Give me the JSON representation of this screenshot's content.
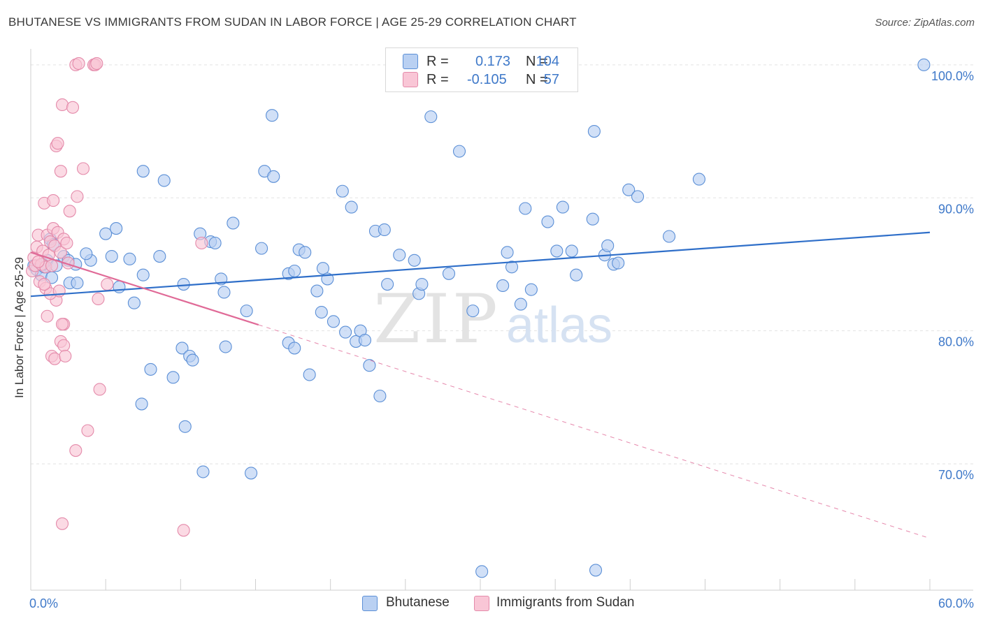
{
  "title": "BHUTANESE VS IMMIGRANTS FROM SUDAN IN LABOR FORCE | AGE 25-29 CORRELATION CHART",
  "source": "Source: ZipAtlas.com",
  "watermark": {
    "zip": "ZIP",
    "atlas": "atlas"
  },
  "legend": {
    "series": [
      {
        "r_label": "R =",
        "r_value": "0.173",
        "n_label": "N =",
        "n_value": "104",
        "fill": "#b9d0f2",
        "stroke": "#5b8fd6"
      },
      {
        "r_label": "R =",
        "r_value": "-0.105",
        "n_label": "N =",
        "n_value": "57",
        "fill": "#f9c6d6",
        "stroke": "#e48aaa"
      }
    ]
  },
  "bottom_legend": {
    "items": [
      {
        "label": "Bhutanese",
        "fill": "#b9d0f2",
        "stroke": "#5b8fd6"
      },
      {
        "label": "Immigrants from Sudan",
        "fill": "#f9c6d6",
        "stroke": "#e48aaa"
      }
    ]
  },
  "colors": {
    "blue_fill": "#b9d0f2",
    "blue_stroke": "#5b8fd6",
    "blue_line": "#2f6fc9",
    "pink_fill": "#f9c6d6",
    "pink_stroke": "#e48aaa",
    "pink_line": "#e06a97",
    "tick_label": "#3f79c9",
    "grid": "#e2e2e2"
  },
  "chart_data": {
    "type": "scatter",
    "title": "BHUTANESE VS IMMIGRANTS FROM SUDAN IN LABOR FORCE | AGE 25-29 CORRELATION CHART",
    "xlabel": "",
    "ylabel": "In Labor Force | Age 25-29",
    "xlim": [
      0,
      60
    ],
    "ylim": [
      60.5,
      101.2
    ],
    "x_tick_labels": [
      "0.0%",
      "60.0%"
    ],
    "y_ticks": [
      {
        "value": 70,
        "label": "70.0%"
      },
      {
        "value": 80,
        "label": "80.0%"
      },
      {
        "value": 90,
        "label": "90.0%"
      },
      {
        "value": 100,
        "label": "100.0%"
      }
    ],
    "grid": true,
    "series": [
      {
        "name": "Bhutanese",
        "trend": {
          "x0": 0,
          "y0": 82.6,
          "x1": 60,
          "y1": 87.4,
          "solid_until": 60
        },
        "points": [
          [
            0.2,
            84.9
          ],
          [
            0.4,
            84.6
          ],
          [
            0.7,
            84.2
          ],
          [
            0.9,
            84.8
          ],
          [
            1.1,
            85.3
          ],
          [
            1.3,
            86.9
          ],
          [
            1.5,
            86.5
          ],
          [
            1.7,
            84.9
          ],
          [
            2.2,
            85.6
          ],
          [
            2.5,
            85.3
          ],
          [
            3.0,
            85.0
          ],
          [
            4.0,
            85.3
          ],
          [
            5.4,
            85.6
          ],
          [
            6.6,
            85.4
          ],
          [
            7.5,
            84.2
          ],
          [
            8.6,
            85.6
          ],
          [
            2.6,
            83.6
          ],
          [
            3.1,
            83.6
          ],
          [
            5.9,
            83.3
          ],
          [
            10.2,
            83.5
          ],
          [
            5.0,
            87.3
          ],
          [
            5.7,
            87.7
          ],
          [
            6.9,
            82.1
          ],
          [
            7.5,
            92.0
          ],
          [
            8.9,
            91.3
          ],
          [
            11.3,
            87.3
          ],
          [
            12.0,
            86.7
          ],
          [
            12.7,
            83.9
          ],
          [
            12.9,
            82.9
          ],
          [
            13.0,
            78.8
          ],
          [
            10.1,
            78.7
          ],
          [
            10.6,
            78.1
          ],
          [
            10.8,
            77.8
          ],
          [
            8.0,
            77.1
          ],
          [
            9.5,
            76.5
          ],
          [
            7.4,
            74.5
          ],
          [
            10.3,
            72.8
          ],
          [
            11.5,
            69.4
          ],
          [
            14.4,
            81.5
          ],
          [
            13.5,
            88.1
          ],
          [
            15.4,
            86.2
          ],
          [
            15.6,
            92.0
          ],
          [
            16.2,
            91.6
          ],
          [
            16.1,
            96.2
          ],
          [
            17.2,
            79.1
          ],
          [
            17.6,
            78.7
          ],
          [
            17.9,
            86.1
          ],
          [
            18.3,
            85.9
          ],
          [
            17.2,
            84.3
          ],
          [
            17.6,
            84.5
          ],
          [
            18.6,
            76.7
          ],
          [
            19.1,
            83.0
          ],
          [
            19.4,
            81.4
          ],
          [
            19.5,
            84.7
          ],
          [
            19.8,
            83.9
          ],
          [
            14.7,
            69.3
          ],
          [
            20.2,
            80.7
          ],
          [
            20.8,
            90.5
          ],
          [
            21.0,
            79.9
          ],
          [
            21.4,
            89.3
          ],
          [
            21.7,
            79.2
          ],
          [
            22.0,
            80.0
          ],
          [
            22.3,
            79.3
          ],
          [
            22.6,
            77.4
          ],
          [
            23.0,
            87.5
          ],
          [
            23.6,
            87.6
          ],
          [
            23.3,
            75.1
          ],
          [
            23.8,
            83.5
          ],
          [
            24.6,
            85.7
          ],
          [
            25.6,
            85.3
          ],
          [
            25.9,
            82.8
          ],
          [
            26.1,
            83.5
          ],
          [
            26.7,
            96.1
          ],
          [
            27.9,
            84.3
          ],
          [
            28.6,
            93.5
          ],
          [
            29.5,
            81.5
          ],
          [
            30.1,
            61.9
          ],
          [
            31.8,
            85.9
          ],
          [
            32.1,
            84.8
          ],
          [
            31.5,
            83.4
          ],
          [
            32.7,
            82.0
          ],
          [
            33.4,
            83.1
          ],
          [
            33.0,
            89.2
          ],
          [
            34.5,
            88.2
          ],
          [
            35.1,
            86.0
          ],
          [
            35.5,
            89.3
          ],
          [
            36.1,
            86.0
          ],
          [
            36.4,
            84.2
          ],
          [
            37.6,
            95.0
          ],
          [
            37.5,
            88.4
          ],
          [
            37.7,
            62.0
          ],
          [
            38.3,
            85.7
          ],
          [
            38.5,
            86.4
          ],
          [
            38.9,
            85.0
          ],
          [
            39.2,
            85.1
          ],
          [
            39.9,
            90.6
          ],
          [
            40.5,
            90.1
          ],
          [
            42.6,
            87.1
          ],
          [
            44.6,
            91.4
          ],
          [
            59.6,
            100.0
          ],
          [
            0.8,
            85.0
          ],
          [
            1.4,
            84.0
          ],
          [
            3.7,
            85.8
          ],
          [
            12.3,
            86.6
          ]
        ]
      },
      {
        "name": "Immigrants from Sudan",
        "trend": {
          "x0": 0,
          "y0": 85.9,
          "x1": 60,
          "y1": 64.4,
          "solid_until": 15.2
        },
        "points": [
          [
            0.1,
            84.5
          ],
          [
            0.2,
            85.5
          ],
          [
            0.3,
            84.9
          ],
          [
            0.4,
            86.3
          ],
          [
            0.5,
            87.2
          ],
          [
            0.6,
            83.7
          ],
          [
            0.7,
            85.0
          ],
          [
            0.8,
            86.0
          ],
          [
            0.9,
            89.6
          ],
          [
            1.0,
            84.8
          ],
          [
            1.1,
            87.2
          ],
          [
            1.2,
            85.7
          ],
          [
            1.3,
            86.7
          ],
          [
            1.4,
            84.9
          ],
          [
            1.5,
            89.8
          ],
          [
            1.0,
            83.2
          ],
          [
            1.1,
            81.1
          ],
          [
            1.4,
            78.1
          ],
          [
            1.6,
            77.9
          ],
          [
            1.7,
            82.3
          ],
          [
            1.3,
            82.8
          ],
          [
            1.5,
            87.7
          ],
          [
            1.6,
            86.4
          ],
          [
            1.8,
            87.4
          ],
          [
            1.9,
            83.0
          ],
          [
            2.0,
            85.9
          ],
          [
            2.0,
            79.2
          ],
          [
            2.2,
            78.9
          ],
          [
            2.1,
            65.5
          ],
          [
            1.7,
            93.9
          ],
          [
            1.8,
            94.1
          ],
          [
            2.1,
            97.0
          ],
          [
            2.0,
            92.0
          ],
          [
            2.2,
            86.9
          ],
          [
            2.4,
            86.6
          ],
          [
            2.5,
            85.1
          ],
          [
            2.2,
            80.5
          ],
          [
            2.3,
            78.1
          ],
          [
            2.6,
            89.0
          ],
          [
            2.8,
            96.8
          ],
          [
            3.0,
            100.0
          ],
          [
            3.2,
            100.1
          ],
          [
            3.5,
            92.2
          ],
          [
            3.1,
            90.1
          ],
          [
            4.2,
            100.0
          ],
          [
            4.3,
            100.0
          ],
          [
            4.4,
            100.1
          ],
          [
            3.8,
            72.5
          ],
          [
            3.0,
            71.0
          ],
          [
            4.5,
            82.4
          ],
          [
            4.6,
            75.6
          ],
          [
            5.1,
            83.5
          ],
          [
            11.4,
            86.6
          ],
          [
            10.2,
            65.0
          ],
          [
            0.5,
            85.2
          ],
          [
            0.9,
            83.5
          ],
          [
            2.1,
            80.5
          ]
        ]
      }
    ]
  }
}
